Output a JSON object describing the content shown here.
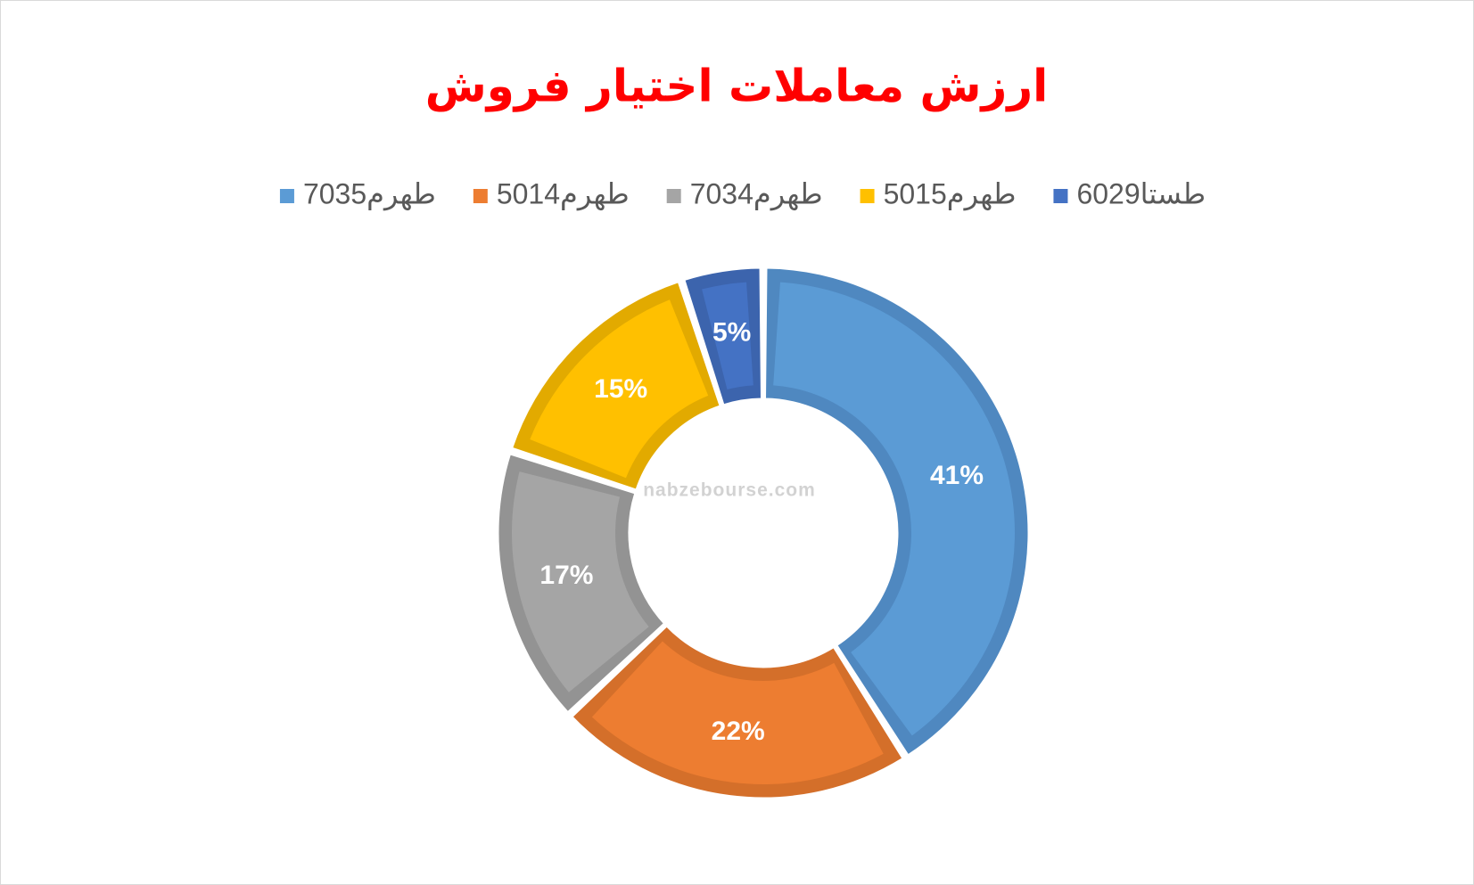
{
  "chart_data": {
    "type": "donut",
    "title": "ارزش معاملات اختیار فروش",
    "categories": [
      "طهرم7035",
      "طهرم5014",
      "طهرم7034",
      "طهرم5015",
      "طستا6029"
    ],
    "values": [
      41,
      22,
      17,
      15,
      5
    ],
    "value_labels": [
      "41%",
      "22%",
      "17%",
      "15%",
      "5%"
    ],
    "colors": [
      "#5b9bd5",
      "#ed7d31",
      "#a5a5a5",
      "#ffc000",
      "#4472c4"
    ],
    "edge_colors": [
      "#4f88c0",
      "#d46f2a",
      "#939393",
      "#e2aa00",
      "#3c64ad"
    ],
    "legend": "top",
    "watermark": "nabzebourse.com"
  }
}
